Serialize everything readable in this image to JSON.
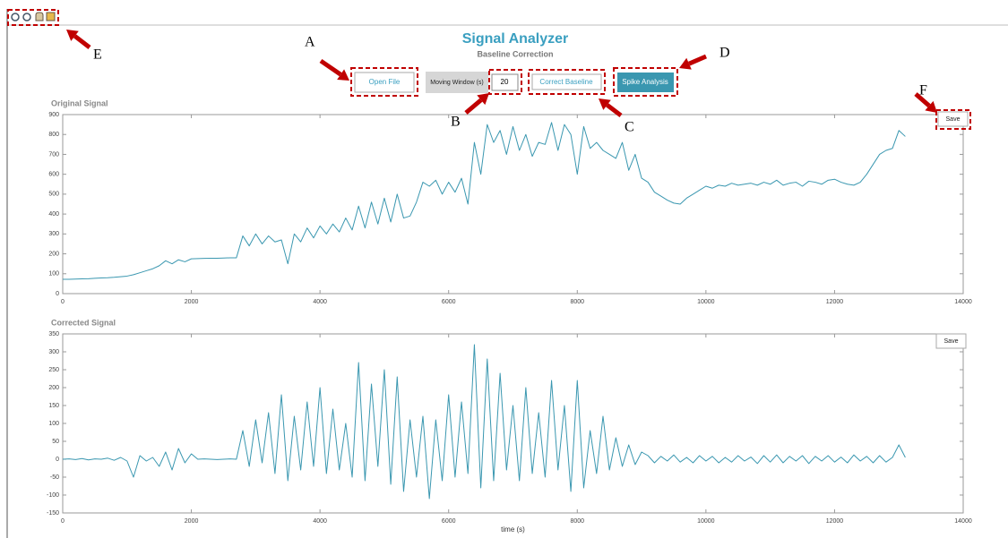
{
  "header": {
    "title": "Signal Analyzer",
    "subtitle": "Baseline Correction"
  },
  "controls": {
    "open_file": "Open File",
    "window_label": "Moving Window (s)",
    "window_value": 20,
    "correct_baseline": "Correct Baseline",
    "spike_analysis": "Spike Analysis"
  },
  "callouts": [
    "A",
    "B",
    "C",
    "D",
    "E",
    "F"
  ],
  "chart_data": [
    {
      "type": "line",
      "title": "Original Signal",
      "button": "Save",
      "color": "#3a97b0",
      "xlim": [
        0,
        14000
      ],
      "xticks": [
        0,
        2000,
        4000,
        6000,
        8000,
        10000,
        12000,
        14000
      ],
      "ylim": [
        0,
        900
      ],
      "yticks": [
        0,
        100,
        200,
        300,
        400,
        500,
        600,
        700,
        800,
        900
      ],
      "x": [
        0,
        100,
        200,
        300,
        400,
        500,
        600,
        700,
        800,
        900,
        1000,
        1100,
        1200,
        1300,
        1400,
        1500,
        1600,
        1700,
        1800,
        1900,
        2000,
        2100,
        2200,
        2300,
        2400,
        2500,
        2600,
        2700,
        2800,
        2900,
        3000,
        3100,
        3200,
        3300,
        3400,
        3500,
        3600,
        3700,
        3800,
        3900,
        4000,
        4100,
        4200,
        4300,
        4400,
        4500,
        4600,
        4700,
        4800,
        4900,
        5000,
        5100,
        5200,
        5300,
        5400,
        5500,
        5600,
        5700,
        5800,
        5900,
        6000,
        6100,
        6200,
        6300,
        6400,
        6500,
        6600,
        6700,
        6800,
        6900,
        7000,
        7100,
        7200,
        7300,
        7400,
        7500,
        7600,
        7700,
        7800,
        7900,
        8000,
        8100,
        8200,
        8300,
        8400,
        8500,
        8600,
        8700,
        8800,
        8900,
        9000,
        9100,
        9200,
        9300,
        9400,
        9500,
        9600,
        9700,
        9800,
        9900,
        10000,
        10100,
        10200,
        10300,
        10400,
        10500,
        10600,
        10700,
        10800,
        10900,
        11000,
        11100,
        11200,
        11300,
        11400,
        11500,
        11600,
        11700,
        11800,
        11900,
        12000,
        12100,
        12200,
        12300,
        12400,
        12500,
        12600,
        12700,
        12800,
        12900,
        13000,
        13100
      ],
      "values": [
        72,
        72,
        73,
        74,
        75,
        77,
        79,
        80,
        82,
        85,
        88,
        95,
        105,
        115,
        125,
        140,
        165,
        150,
        170,
        160,
        175,
        176,
        177,
        178,
        178,
        179,
        180,
        180,
        290,
        240,
        300,
        250,
        290,
        260,
        270,
        150,
        300,
        260,
        330,
        280,
        340,
        300,
        350,
        310,
        380,
        320,
        440,
        330,
        460,
        350,
        480,
        360,
        500,
        380,
        390,
        460,
        560,
        540,
        570,
        500,
        560,
        510,
        580,
        450,
        760,
        600,
        850,
        760,
        820,
        700,
        840,
        720,
        800,
        690,
        760,
        750,
        860,
        720,
        850,
        800,
        600,
        840,
        730,
        760,
        720,
        700,
        680,
        760,
        620,
        700,
        580,
        560,
        510,
        490,
        470,
        455,
        450,
        480,
        500,
        520,
        540,
        530,
        545,
        540,
        555,
        545,
        550,
        555,
        545,
        560,
        550,
        570,
        545,
        555,
        560,
        540,
        565,
        560,
        550,
        570,
        575,
        560,
        550,
        545,
        560,
        600,
        650,
        700,
        720,
        730,
        820,
        790
      ]
    },
    {
      "type": "line",
      "title": "Corrected Signal",
      "button": "Save",
      "xlabel": "time (s)",
      "color": "#3a97b0",
      "xlim": [
        0,
        14000
      ],
      "xticks": [
        0,
        2000,
        4000,
        6000,
        8000,
        10000,
        12000,
        14000
      ],
      "ylim": [
        -150,
        350
      ],
      "yticks": [
        -150,
        -100,
        -50,
        0,
        50,
        100,
        150,
        200,
        250,
        300,
        350
      ],
      "x": [
        0,
        100,
        200,
        300,
        400,
        500,
        600,
        700,
        800,
        900,
        1000,
        1100,
        1200,
        1300,
        1400,
        1500,
        1600,
        1700,
        1800,
        1900,
        2000,
        2100,
        2200,
        2300,
        2400,
        2500,
        2600,
        2700,
        2800,
        2900,
        3000,
        3100,
        3200,
        3300,
        3400,
        3500,
        3600,
        3700,
        3800,
        3900,
        4000,
        4100,
        4200,
        4300,
        4400,
        4500,
        4600,
        4700,
        4800,
        4900,
        5000,
        5100,
        5200,
        5300,
        5400,
        5500,
        5600,
        5700,
        5800,
        5900,
        6000,
        6100,
        6200,
        6300,
        6400,
        6500,
        6600,
        6700,
        6800,
        6900,
        7000,
        7100,
        7200,
        7300,
        7400,
        7500,
        7600,
        7700,
        7800,
        7900,
        8000,
        8100,
        8200,
        8300,
        8400,
        8500,
        8600,
        8700,
        8800,
        8900,
        9000,
        9100,
        9200,
        9300,
        9400,
        9500,
        9600,
        9700,
        9800,
        9900,
        10000,
        10100,
        10200,
        10300,
        10400,
        10500,
        10600,
        10700,
        10800,
        10900,
        11000,
        11100,
        11200,
        11300,
        11400,
        11500,
        11600,
        11700,
        11800,
        11900,
        12000,
        12100,
        12200,
        12300,
        12400,
        12500,
        12600,
        12700,
        12800,
        12900,
        13000,
        13100
      ],
      "values": [
        0,
        1,
        -1,
        2,
        -2,
        1,
        0,
        3,
        -3,
        5,
        -5,
        -50,
        10,
        -5,
        5,
        -20,
        20,
        -30,
        30,
        -10,
        15,
        0,
        1,
        0,
        -1,
        0,
        1,
        0,
        80,
        -20,
        110,
        -10,
        130,
        -40,
        180,
        -60,
        120,
        -30,
        160,
        -20,
        200,
        -40,
        140,
        -30,
        100,
        -50,
        270,
        -60,
        210,
        -20,
        250,
        -70,
        230,
        -90,
        110,
        -50,
        120,
        -110,
        110,
        -60,
        180,
        -50,
        160,
        -40,
        320,
        -80,
        280,
        -60,
        240,
        -30,
        150,
        -60,
        200,
        -40,
        130,
        -50,
        220,
        -30,
        150,
        -90,
        220,
        -80,
        80,
        -40,
        120,
        -30,
        60,
        -20,
        40,
        -15,
        20,
        10,
        -10,
        8,
        -5,
        12,
        -8,
        5,
        -10,
        10,
        -5,
        8,
        -10,
        5,
        -8,
        10,
        -5,
        6,
        -12,
        10,
        -8,
        12,
        -10,
        8,
        -5,
        10,
        -12,
        8,
        -5,
        10,
        -8,
        6,
        -10,
        12,
        -5,
        8,
        -10,
        10,
        -8,
        5,
        40,
        5
      ]
    }
  ]
}
